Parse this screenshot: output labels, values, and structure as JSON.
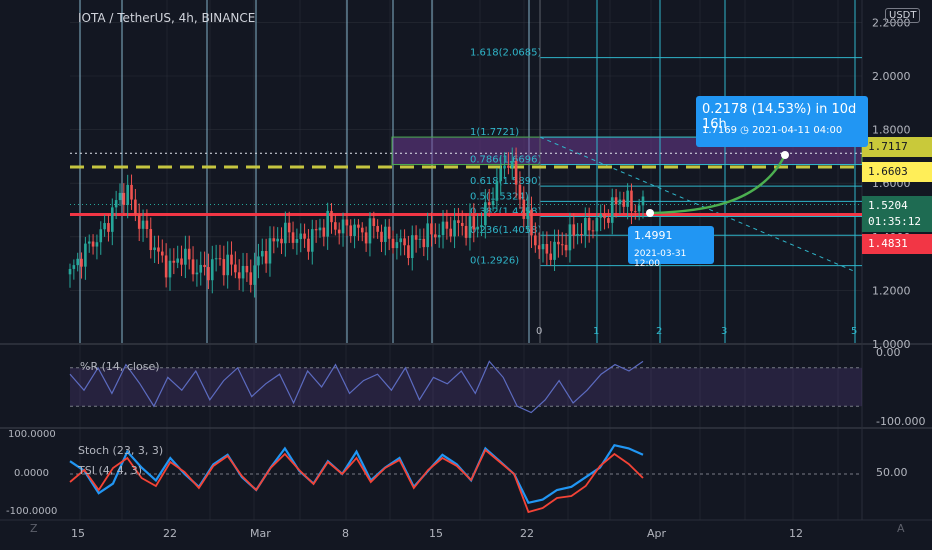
{
  "symbol": "IOTA / TetherUS, 4h, BINANCE",
  "currency": "USDT",
  "colors": {
    "background": "#131722",
    "up": "#26a69a",
    "down": "#ef5350",
    "grid": "#363a45",
    "vline": "#9fd9f2",
    "fib": "#2fb5c9",
    "redline": "#f23645",
    "yellowdash": "#c6c640",
    "purpleband": "#6b3a8f",
    "stoch": "#2196f3",
    "tsi": "#f44336",
    "projection": "#4caf50",
    "measure": "#2196f3"
  },
  "price_labels": {
    "fib_top": "1.7117",
    "fib_786": "1.6603",
    "current": "1.5204",
    "countdown": "01:35:12",
    "redline": "1.4831"
  },
  "measure": {
    "line1": "0.2178 (14.53%) in 10d 16h",
    "line2": "1.7169 ◷ 2021-04-11  04:00"
  },
  "point": {
    "price": "1.4991",
    "date": "2021-03-31 12:00"
  },
  "wr_label": "%R (14, close)",
  "stoch_label": "Stoch (23, 3, 3)",
  "tsi_label": "TSI (4, 4, 3)",
  "icons": {
    "bottom_left": "Z",
    "bottom_right": "A"
  },
  "chart_data": [
    {
      "type": "candlestick",
      "title": "IOTA / TetherUS, 4h, BINANCE",
      "x_ticks": [
        "15",
        "22",
        "Mar",
        "8",
        "15",
        "22",
        "Apr",
        "12"
      ],
      "y_ticks": [
        "1.0000",
        "1.2000",
        "1.4000",
        "1.6000",
        "1.8000",
        "2.0000",
        "2.2000"
      ],
      "ylim": [
        0.98,
        2.24
      ],
      "series_close_trace": [
        1.26,
        1.33,
        1.38,
        1.42,
        1.52,
        1.58,
        1.47,
        1.4,
        1.32,
        1.28,
        1.34,
        1.28,
        1.27,
        1.31,
        1.3,
        1.27,
        1.25,
        1.33,
        1.37,
        1.42,
        1.4,
        1.38,
        1.42,
        1.46,
        1.43,
        1.44,
        1.41,
        1.44,
        1.4,
        1.38,
        1.36,
        1.39,
        1.41,
        1.42,
        1.44,
        1.44,
        1.43,
        1.49,
        1.6,
        1.7,
        1.55,
        1.42,
        1.34,
        1.35,
        1.38,
        1.42,
        1.43,
        1.46,
        1.49,
        1.55,
        1.51,
        1.52
      ],
      "fibonacci": [
        {
          "label": "0(1.2926)",
          "value": 1.2926
        },
        {
          "label": "0.236(1.4058)",
          "value": 1.4058
        },
        {
          "label": "0.382(1.4758)",
          "value": 1.4758
        },
        {
          "label": "0.5(1.5324)",
          "value": 1.5324
        },
        {
          "label": "0.618(1.5890)",
          "value": 1.589
        },
        {
          "label": "0.786(1.6696)",
          "value": 1.6696
        },
        {
          "label": "1(1.7721)",
          "value": 1.7721
        },
        {
          "label": "1.618(2.0685)",
          "value": 2.0685
        }
      ],
      "horizontal_lines": [
        1.4831,
        1.6603,
        1.7117
      ],
      "time_zones": [
        "0",
        "1",
        "2",
        "3",
        "5"
      ]
    },
    {
      "type": "line",
      "title": "%R (14, close)",
      "y_ticks": [
        "0.00",
        "-100.000"
      ],
      "ylim": [
        -100,
        0
      ],
      "series": [
        {
          "name": "%R (14, close)",
          "values": [
            -30,
            -55,
            -20,
            -60,
            -15,
            -45,
            -80,
            -35,
            -55,
            -25,
            -70,
            -40,
            -20,
            -65,
            -45,
            -30,
            -75,
            -25,
            -50,
            -15,
            -60,
            -40,
            -30,
            -55,
            -20,
            -70,
            -35,
            -45,
            -25,
            -60,
            -10,
            -35,
            -80,
            -90,
            -70,
            -40,
            -75,
            -55,
            -30,
            -15,
            -25,
            -10
          ]
        }
      ]
    },
    {
      "type": "line",
      "y_ticks_left": [
        "100.0000",
        "0.0000",
        "-100.0000"
      ],
      "y_ticks_right": [
        "50.00"
      ],
      "series": [
        {
          "name": "Stoch (23, 3, 3)",
          "values": [
            70,
            55,
            20,
            35,
            85,
            60,
            40,
            75,
            50,
            30,
            65,
            80,
            45,
            25,
            60,
            90,
            55,
            35,
            70,
            50,
            85,
            40,
            60,
            75,
            30,
            55,
            80,
            65,
            40,
            90,
            70,
            50,
            5,
            10,
            25,
            30,
            45,
            60,
            95,
            90,
            80
          ]
        },
        {
          "name": "TSI (4, 4, 3)",
          "values": [
            -20,
            10,
            -40,
            15,
            40,
            -10,
            -30,
            30,
            5,
            -35,
            20,
            45,
            -5,
            -40,
            15,
            50,
            10,
            -25,
            30,
            0,
            40,
            -20,
            15,
            35,
            -35,
            10,
            40,
            20,
            -15,
            60,
            30,
            0,
            -95,
            -85,
            -60,
            -55,
            -30,
            20,
            50,
            25,
            -10
          ]
        }
      ]
    }
  ]
}
